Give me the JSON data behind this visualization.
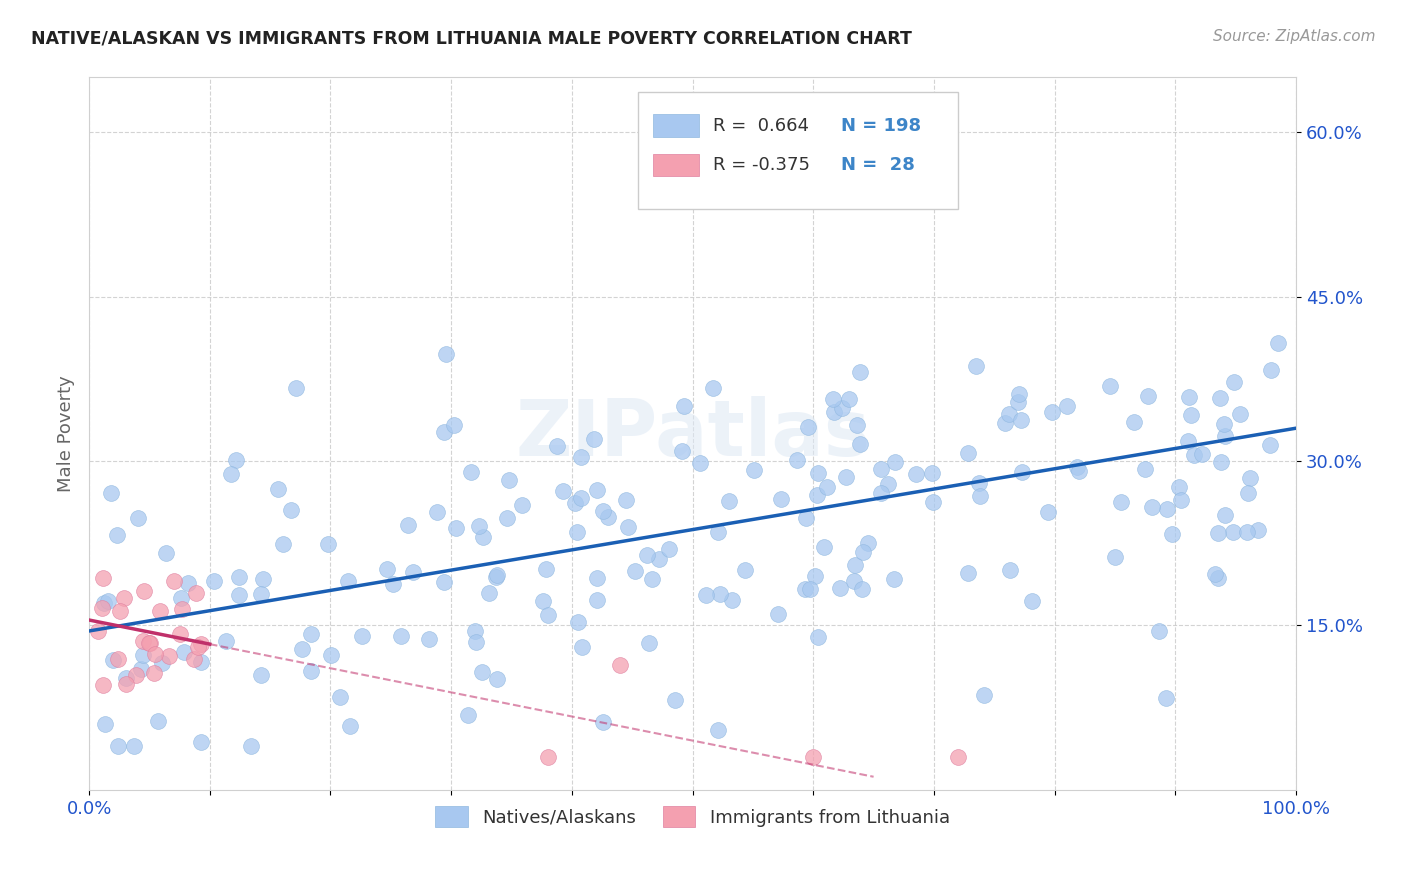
{
  "title": "NATIVE/ALASKAN VS IMMIGRANTS FROM LITHUANIA MALE POVERTY CORRELATION CHART",
  "source": "Source: ZipAtlas.com",
  "ylabel": "Male Poverty",
  "xlim": [
    0.0,
    1.0
  ],
  "ylim": [
    0.0,
    0.65
  ],
  "ytick_positions": [
    0.15,
    0.3,
    0.45,
    0.6
  ],
  "yticklabels": [
    "15.0%",
    "30.0%",
    "45.0%",
    "60.0%"
  ],
  "grid_color": "#c8c8c8",
  "background_color": "#ffffff",
  "blue_color": "#a8c8f0",
  "blue_line_color": "#1a5fb4",
  "pink_color": "#f4a0b0",
  "pink_line_color": "#c0306a",
  "legend_color_blue": "#3d85c8",
  "legend_color_n": "#3d85c8",
  "watermark": "ZIPatlas",
  "blue_intercept": 0.145,
  "blue_slope": 0.185,
  "pink_intercept": 0.155,
  "pink_slope": -0.22,
  "blue_scatter_seed": 12,
  "pink_scatter_seed": 7,
  "n_blue": 198,
  "n_pink": 28
}
